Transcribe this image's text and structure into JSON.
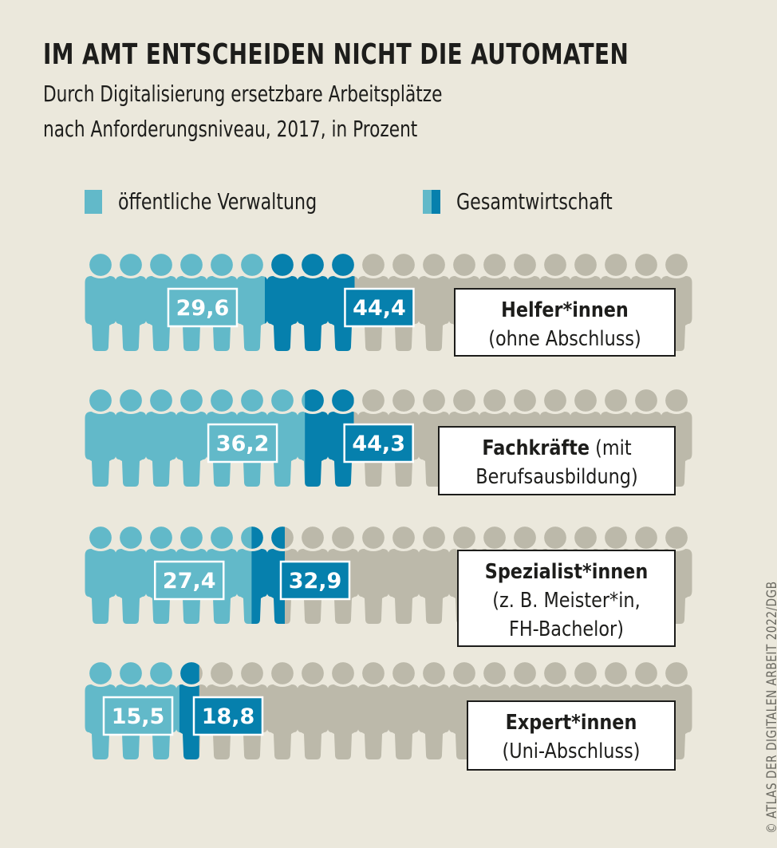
{
  "title": "IM AMT ENTSCHEIDEN NICHT DIE AUTOMATEN",
  "subtitle_lines": [
    "Durch Digitalisierung ersetzbare Arbeitsplätze",
    "nach Anforderungsniveau, 2017, in Prozent"
  ],
  "legend": [
    {
      "label": "öffentliche Verwaltung",
      "icon": "single-color-swatch"
    },
    {
      "label": "Gesamtwirtschaft",
      "icon": "two-tone-swatch"
    }
  ],
  "colors": {
    "background": "#ebe8dc",
    "public_admin": "#62b9c9",
    "total_economy": "#0680ad",
    "remainder": "#bcb9aa",
    "text": "#1d1d1b"
  },
  "credit": "© ATLAS DER DIGITALEN ARBEIT 2022/DGB",
  "chart_data": {
    "type": "bar",
    "subtype": "pictogram-stacked-horizontal",
    "title": "IM AMT ENTSCHEIDEN NICHT DIE AUTOMATEN",
    "subtitle": "Durch Digitalisierung ersetzbare Arbeitsplätze nach Anforderungsniveau, 2017, in Prozent",
    "unit": "Prozent",
    "icons_per_row": 20,
    "percent_per_icon": 5,
    "xlim": [
      0,
      100
    ],
    "categories": [
      {
        "name": "Helfer*innen",
        "name_rest": "",
        "detail_lines": [
          "(ohne Abschluss)"
        ]
      },
      {
        "name": "Fachkräfte",
        "name_rest": " (mit",
        "detail_lines": [
          "Berufsausbildung)"
        ]
      },
      {
        "name": "Spezialist*innen",
        "name_rest": "",
        "detail_lines": [
          "(z. B. Meister*in,",
          "FH-Bachelor)"
        ]
      },
      {
        "name": "Expert*innen",
        "name_rest": "",
        "detail_lines": [
          "(Uni-Abschluss)"
        ]
      }
    ],
    "series": [
      {
        "name": "öffentliche Verwaltung",
        "values": [
          29.6,
          36.2,
          27.4,
          15.5
        ],
        "labels": [
          "29,6",
          "36,2",
          "27,4",
          "15,5"
        ]
      },
      {
        "name": "Gesamtwirtschaft",
        "values": [
          44.4,
          44.3,
          32.9,
          18.8
        ],
        "labels": [
          "44,4",
          "44,3",
          "32,9",
          "18,8"
        ]
      }
    ]
  }
}
